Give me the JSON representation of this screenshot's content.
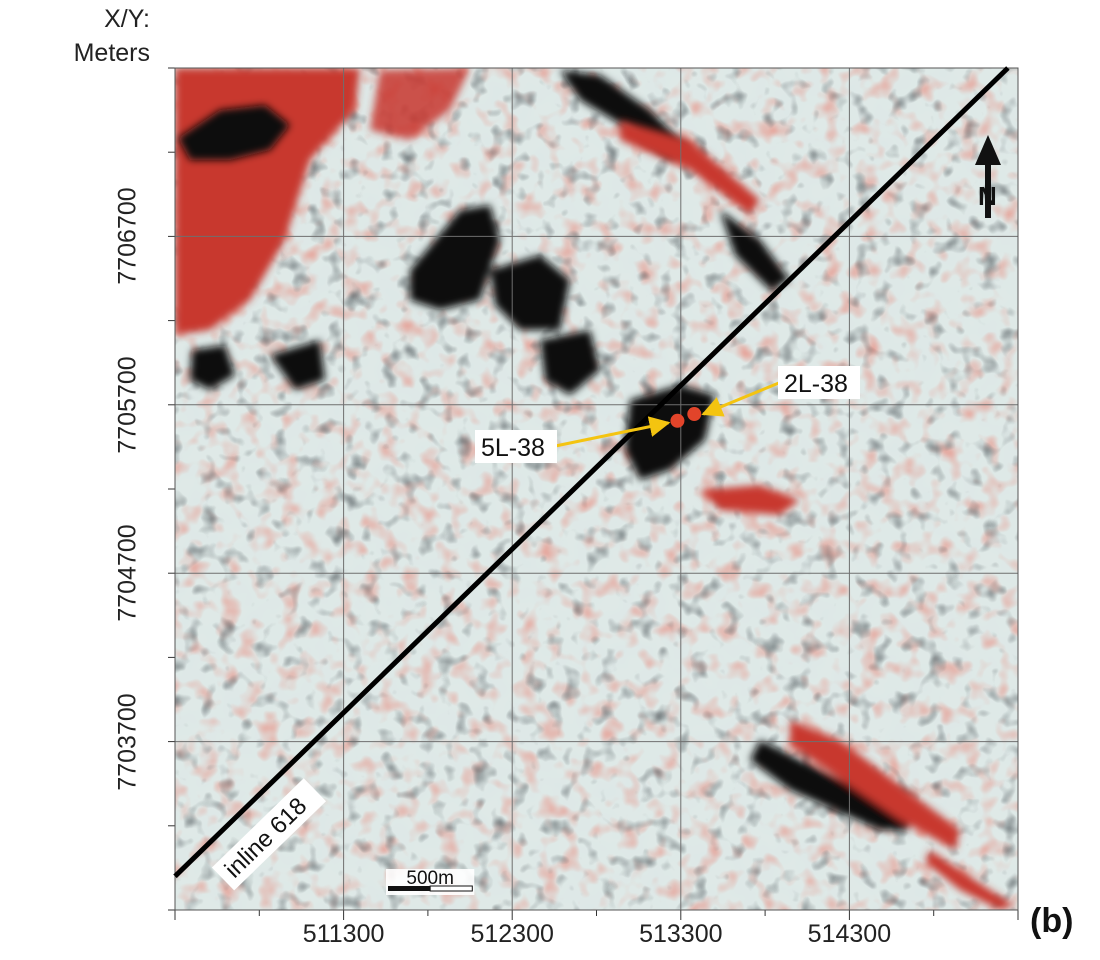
{
  "axis_title": [
    "X/Y:",
    "Meters"
  ],
  "x_ticks": [
    {
      "value": 511300,
      "label": "511300"
    },
    {
      "value": 512300,
      "label": "512300"
    },
    {
      "value": 513300,
      "label": "513300"
    },
    {
      "value": 514300,
      "label": "514300"
    }
  ],
  "y_ticks": [
    {
      "value": 7706700,
      "label": "7706700"
    },
    {
      "value": 7705700,
      "label": "7705700"
    },
    {
      "value": 7704700,
      "label": "7704700"
    },
    {
      "value": 7703700,
      "label": "7703700"
    }
  ],
  "map_extent": {
    "x": [
      510300,
      515300
    ],
    "y": [
      7702700,
      7707700
    ]
  },
  "line": {
    "label": "inline 618",
    "from": [
      510300,
      7702900
    ],
    "to": [
      515240,
      7707700
    ]
  },
  "wells": [
    {
      "name": "5L-38",
      "x": 513280,
      "y": 7705605
    },
    {
      "name": "2L-38",
      "x": 513380,
      "y": 7705645
    }
  ],
  "scale_bar": {
    "label": "500m",
    "length_m": 500
  },
  "north_arrow": {
    "label": "N"
  },
  "panel_label": "(b)",
  "colors": {
    "positive_amplitude": "#c8372d",
    "negative_amplitude": "#111111",
    "background_light": "#e2ecea",
    "background_blue": "#aac6ca",
    "background_tan": "#d8d6b3",
    "well_marker": "#e2442a",
    "callout": "#f4c410",
    "grid": "#6f6f6f"
  }
}
